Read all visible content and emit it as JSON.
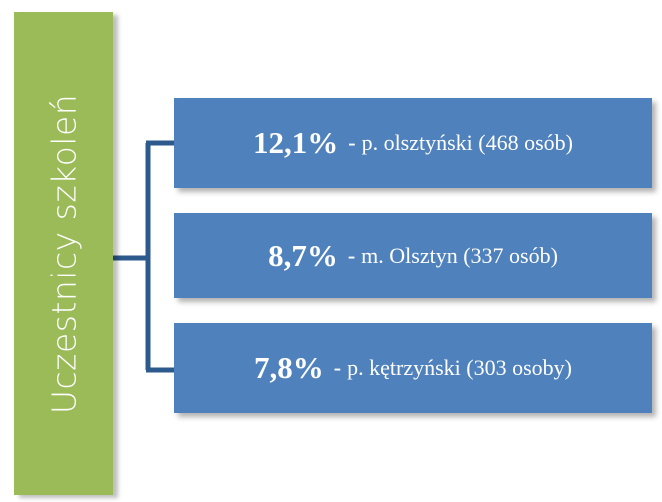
{
  "root": {
    "label": "Uczestnicy szkoleń"
  },
  "items": [
    {
      "percent": "12,1%",
      "dash": "-",
      "text": "p. olsztyński (468 osób)"
    },
    {
      "percent": "8,7%",
      "dash": "-",
      "text": "m. Olsztyn (337 osób)"
    },
    {
      "percent": "7,8%",
      "dash": "-",
      "text": "p. kętrzyński (303 osoby)"
    }
  ]
}
